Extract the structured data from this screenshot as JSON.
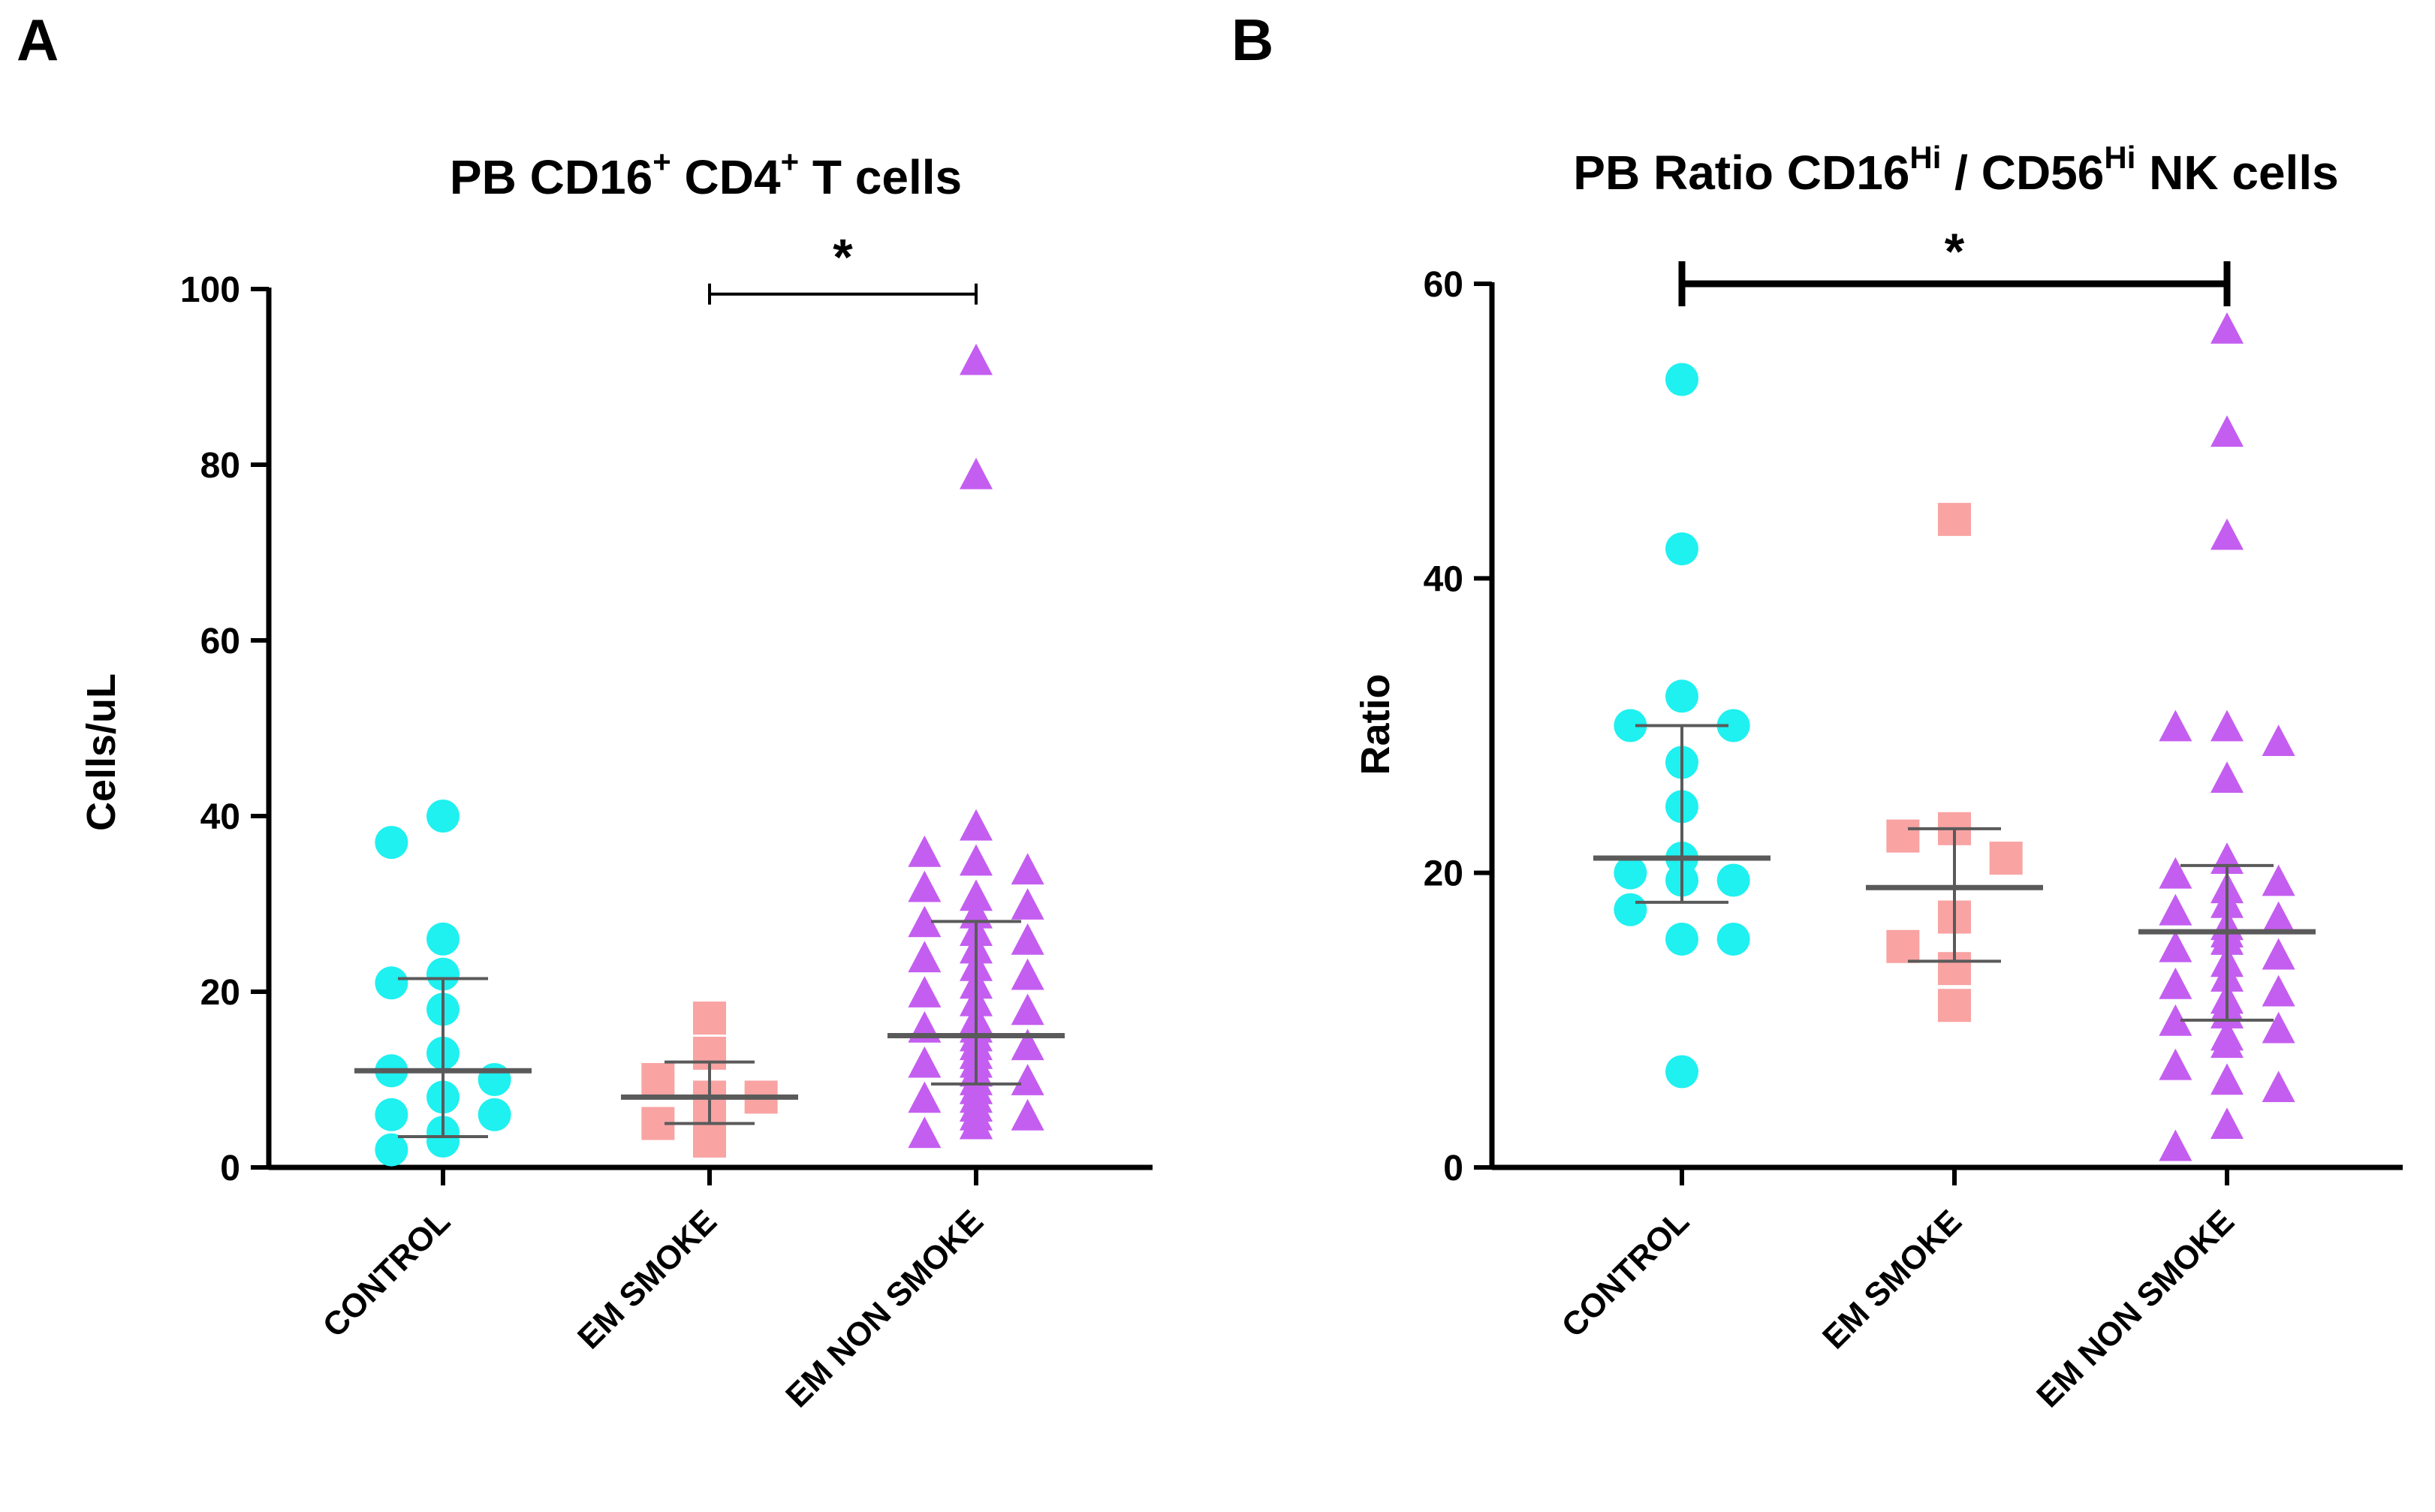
{
  "panel_a": {
    "letter": "A",
    "title_main": "PB CD16",
    "title_sup1": "+",
    "title_mid": " CD4",
    "title_sup2": "+",
    "title_tail": " T cells"
  },
  "panel_b": {
    "letter": "B",
    "title_main": "PB Ratio CD16",
    "title_sup1": "Hi",
    "title_mid": " / CD56",
    "title_sup2": "Hi",
    "title_tail": " NK cells"
  },
  "colors": {
    "control": "#1ff0f0",
    "em_smoke": "#f9a3a3",
    "em_non_smoke": "#c45ef0",
    "summary": "#5a5a5a",
    "axis": "#000000"
  },
  "chart_data": [
    {
      "type": "scatter",
      "title": "PB CD16+ CD4+ T cells",
      "xlabel": "",
      "ylabel": "Cells/uL",
      "ylim": [
        0,
        100
      ],
      "yticks": [
        0,
        20,
        40,
        60,
        80,
        100
      ],
      "categories": [
        "CONTROL",
        "EM SMOKE",
        "EM NON SMOKE"
      ],
      "series": [
        {
          "name": "CONTROL",
          "marker": "circle",
          "color": "#1ff0f0",
          "values": [
            40,
            37,
            26,
            22,
            21,
            18,
            13,
            11,
            10,
            8,
            6,
            6,
            4,
            3,
            2
          ],
          "median": 11,
          "q1": 3.5,
          "q3": 21.5
        },
        {
          "name": "EM SMOKE",
          "marker": "square",
          "color": "#f9a3a3",
          "values": [
            17,
            13,
            10,
            8,
            8,
            7,
            5,
            3
          ],
          "median": 8,
          "q1": 5,
          "q3": 12
        },
        {
          "name": "EM NON SMOKE",
          "marker": "triangle",
          "color": "#c45ef0",
          "values": [
            92,
            79,
            39,
            36,
            35,
            34,
            32,
            31,
            30,
            29,
            28,
            27,
            26,
            25,
            24,
            23,
            22,
            21,
            20,
            19,
            18,
            17,
            17,
            16,
            16,
            15,
            14,
            14,
            13,
            13,
            12,
            12,
            11,
            11,
            10,
            10,
            9,
            9,
            8,
            8,
            7,
            7,
            6,
            6,
            5,
            5,
            4
          ],
          "median": 15,
          "q1": 9.5,
          "q3": 28
        }
      ],
      "significance": {
        "from": "EM SMOKE",
        "to": "EM NON SMOKE",
        "label": "*",
        "y": 99
      }
    },
    {
      "type": "scatter",
      "title": "PB Ratio CD16Hi / CD56Hi NK cells",
      "xlabel": "",
      "ylabel": "Ratio",
      "ylim": [
        0,
        60
      ],
      "yticks": [
        0,
        20,
        40,
        60
      ],
      "categories": [
        "CONTROL",
        "EM SMOKE",
        "EM NON SMOKE"
      ],
      "series": [
        {
          "name": "CONTROL",
          "marker": "circle",
          "color": "#1ff0f0",
          "values": [
            53.5,
            42,
            32,
            30,
            30,
            27.5,
            24.5,
            21,
            20,
            19.5,
            19.5,
            17.5,
            15.5,
            15.5,
            6.5
          ],
          "median": 21,
          "q1": 18,
          "q3": 30
        },
        {
          "name": "EM SMOKE",
          "marker": "square",
          "color": "#f9a3a3",
          "values": [
            44,
            23,
            22.5,
            21,
            17,
            15,
            13.5,
            11
          ],
          "median": 19,
          "q1": 14,
          "q3": 23
        },
        {
          "name": "EM NON SMOKE",
          "marker": "triangle",
          "color": "#c45ef0",
          "values": [
            57,
            50,
            43,
            30,
            30,
            29,
            26.5,
            21,
            20,
            19.5,
            19,
            18,
            17.5,
            17,
            16.5,
            16,
            15.5,
            15,
            14.5,
            14,
            13,
            12.5,
            12,
            11.5,
            11,
            11,
            10.5,
            10,
            9.5,
            9,
            8.5,
            7,
            6,
            5.5,
            3,
            1.5
          ],
          "median": 16,
          "q1": 10,
          "q3": 20.5
        }
      ],
      "significance": {
        "from": "CONTROL",
        "to": "EM NON SMOKE",
        "label": "*",
        "y": 60
      }
    }
  ]
}
